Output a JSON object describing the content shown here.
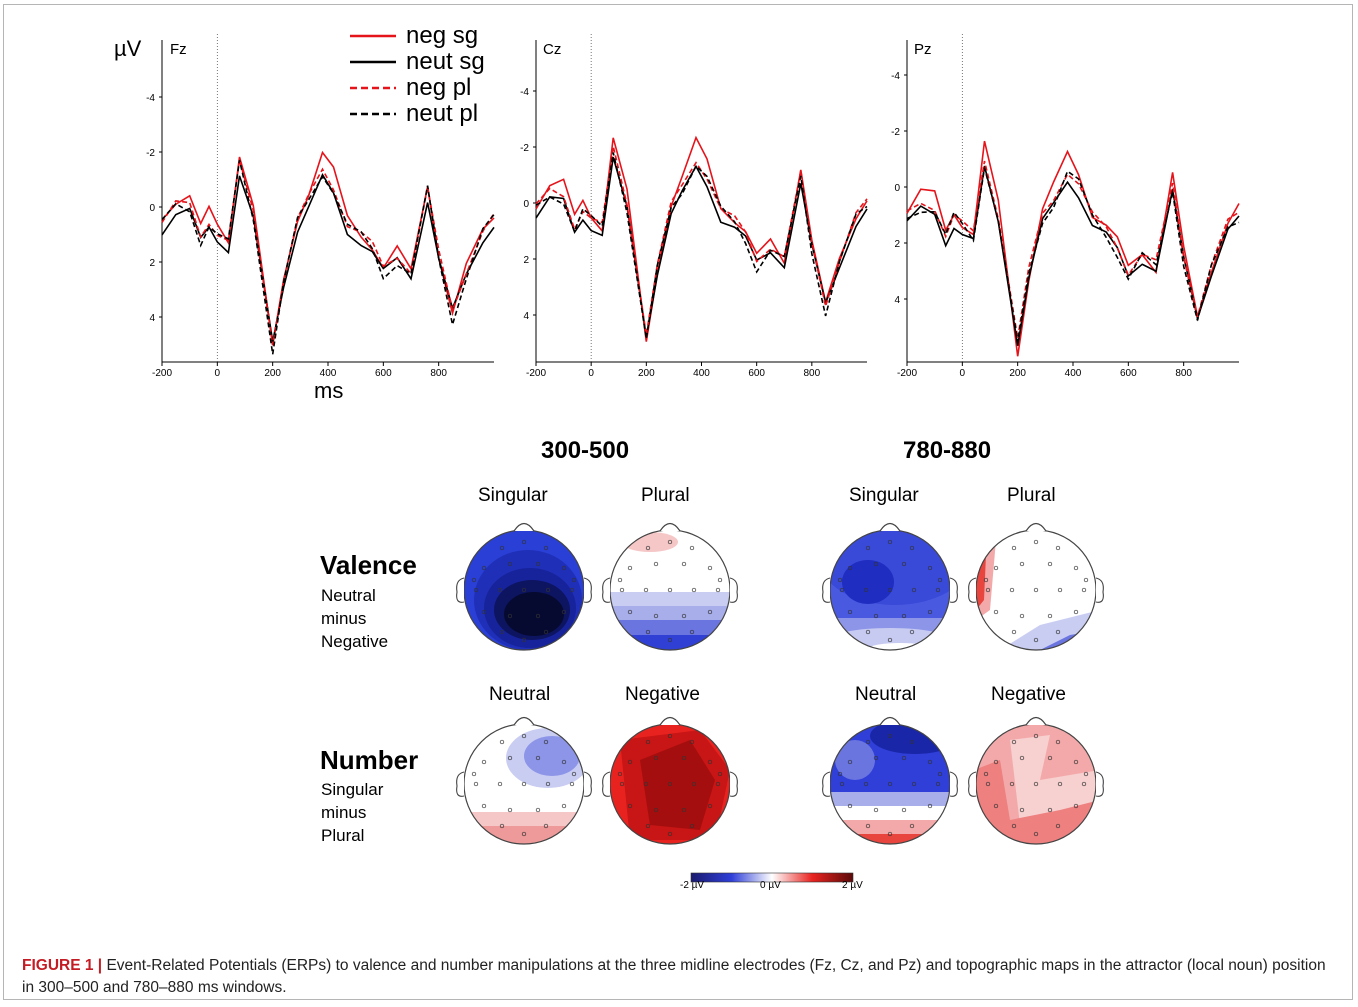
{
  "erp": {
    "units_label": "µV",
    "x_unit_label": "ms",
    "legend": [
      {
        "label": "neg sg",
        "color": "#e5141b",
        "dashed": false
      },
      {
        "label": "neut sg",
        "color": "#000000",
        "dashed": false
      },
      {
        "label": "neg pl",
        "color": "#e5141b",
        "dashed": true
      },
      {
        "label": "neut pl",
        "color": "#000000",
        "dashed": true
      }
    ],
    "panels": [
      {
        "electrode": "Fz",
        "y_ticks": [
          "-4",
          "-2",
          "0",
          "2",
          "4"
        ],
        "x_ticks": [
          "-200",
          "0",
          "200",
          "400",
          "600",
          "800"
        ]
      },
      {
        "electrode": "Cz",
        "y_ticks": [
          "-4",
          "-2",
          "0",
          "2",
          "4"
        ],
        "x_ticks": [
          "-200",
          "0",
          "200",
          "400",
          "600",
          "800"
        ]
      },
      {
        "electrode": "Pz",
        "y_ticks": [
          "-4",
          "-2",
          "0",
          "2",
          "4"
        ],
        "x_ticks": [
          "-200",
          "0",
          "200",
          "400",
          "600",
          "800"
        ]
      }
    ]
  },
  "topo": {
    "windows": [
      "300-500",
      "780-880"
    ],
    "rows": [
      {
        "title": "Valence",
        "subtitle_lines": [
          "Neutral",
          "minus",
          "Negative"
        ],
        "columns": [
          "Singular",
          "Plural"
        ]
      },
      {
        "title": "Number",
        "subtitle_lines": [
          "Singular",
          "minus",
          "Plural"
        ],
        "columns": [
          "Neutral",
          "Negative"
        ]
      }
    ],
    "colorbar": {
      "min_label": "-2 µV",
      "mid_label": "0 µV",
      "max_label": "2 µV",
      "colors": [
        "#1a1a6e",
        "#2f3fd8",
        "#ffffff",
        "#e8231f",
        "#5a0a0a"
      ]
    }
  },
  "caption": {
    "label": "FIGURE 1 |",
    "text": "Event-Related Potentials (ERPs) to valence and number manipulations at the three midline electrodes (Fz, Cz, and Pz) and topographic maps in the attractor (local noun) position in 300–500 and 780–880 ms windows."
  }
}
